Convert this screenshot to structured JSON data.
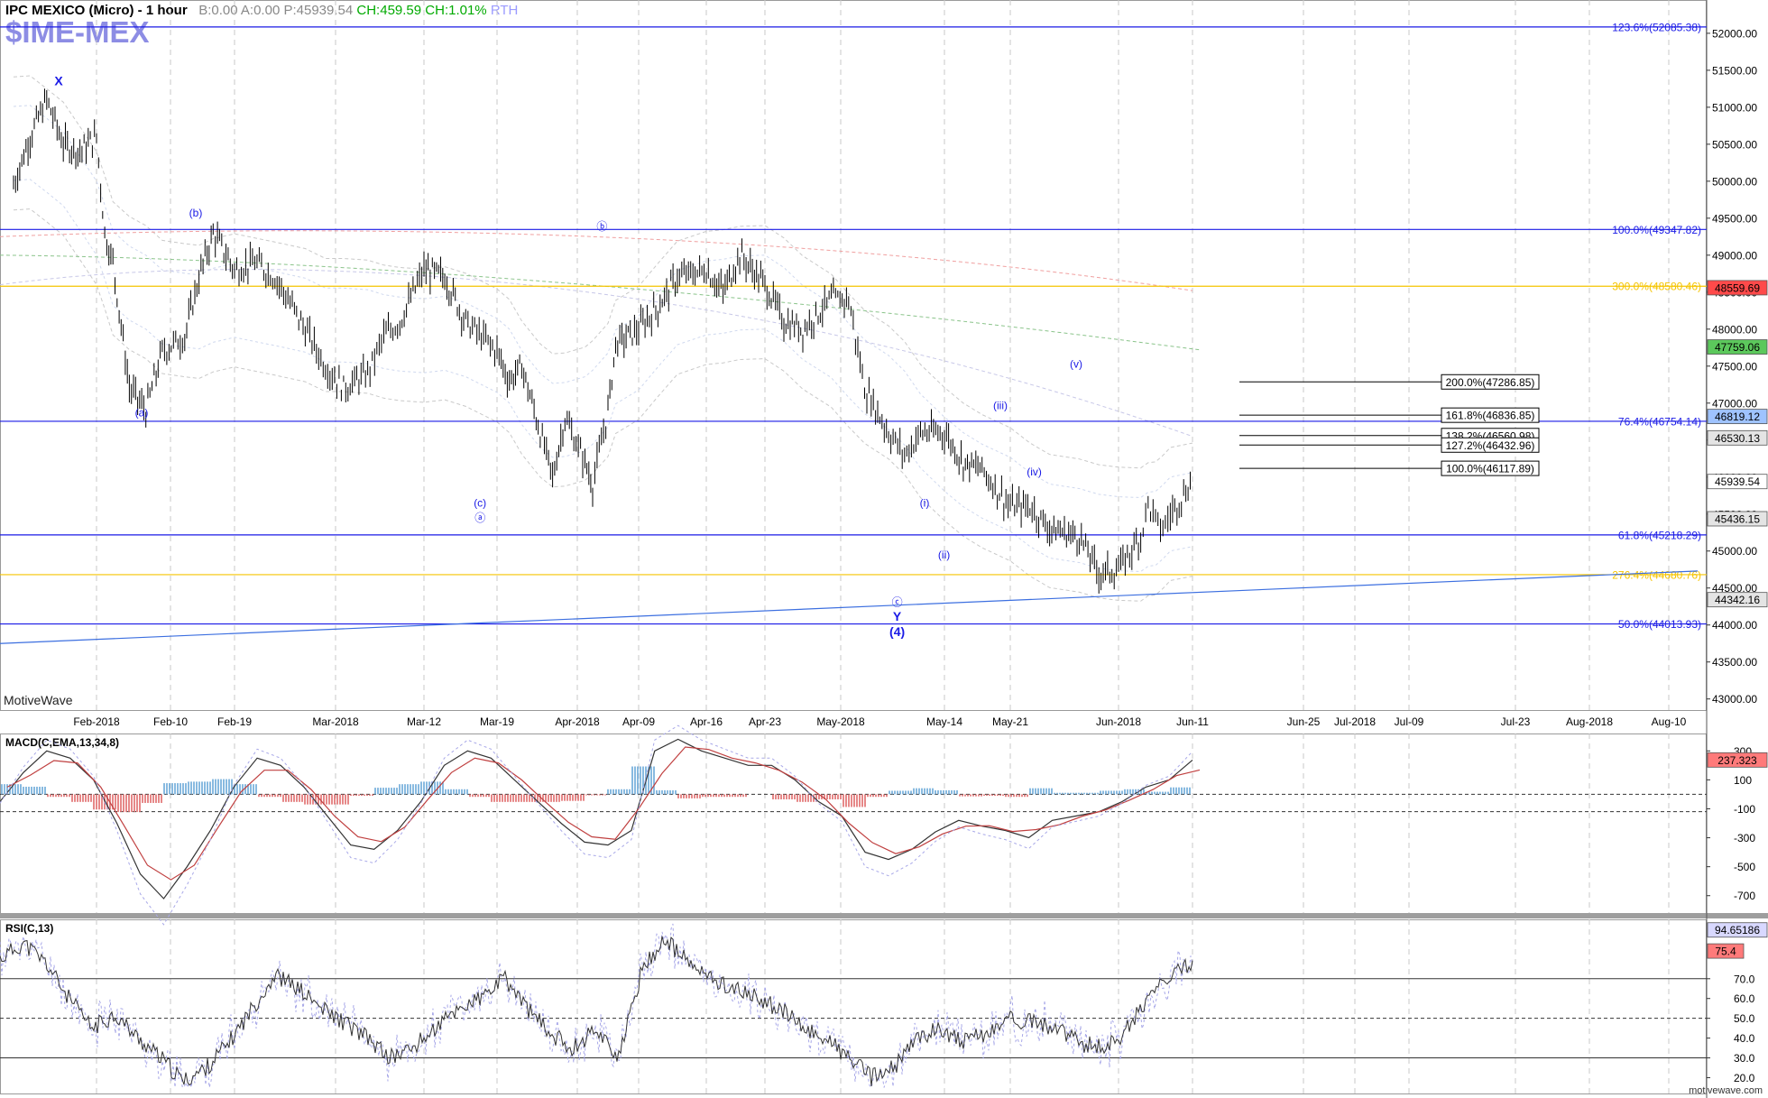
{
  "header": {
    "instrument": "IPC MEXICO (Micro) - 1 hour",
    "b": "B:0.00",
    "a": "A:0.00",
    "p": "P:45939.54",
    "ch": "CH:459.59",
    "chp": "CH:1.01%",
    "rth": "RTH",
    "symbol": "$IME-MEX"
  },
  "watermark": "MotiveWave",
  "footer": "motivewave.com",
  "colors": {
    "price_bar": "#000000",
    "fib_blue": "#1a1ae6",
    "fib_yellow": "#f5c400",
    "trendline": "#3c6fe0",
    "wave_label": "#1a1ae6",
    "macd_pos": "#6aa8d8",
    "macd_neg": "#e06a6a",
    "rsi_fill": "#c8a0a0",
    "rsi_fill_top": "#a8a8d0",
    "price_badge": "#ff3b3b",
    "green_badge": "#4caf50"
  },
  "price_axis": {
    "ticks": [
      "52000.00",
      "51500.00",
      "51000.00",
      "50500.00",
      "50000.00",
      "49500.00",
      "49000.00",
      "48500.00",
      "48000.00",
      "47500.00",
      "47000.00",
      "46500.00",
      "46000.00",
      "45500.00",
      "45000.00",
      "44500.00",
      "44000.00",
      "43500.00",
      "43000.00"
    ],
    "badges": [
      {
        "label": "48559.69",
        "value": 48559.69,
        "style": "red"
      },
      {
        "label": "47759.06",
        "value": 47759.06,
        "style": "green"
      },
      {
        "label": "46819.12",
        "value": 46819.12,
        "style": "blue"
      },
      {
        "label": "46530.13",
        "value": 46530.13,
        "style": "grey"
      },
      {
        "label": "45939.54",
        "value": 45939.54,
        "style": "white"
      },
      {
        "label": "45436.15",
        "value": 45436.15,
        "style": "grey"
      },
      {
        "label": "44342.16",
        "value": 44342.16,
        "style": "grey"
      }
    ]
  },
  "time_axis": {
    "labels": [
      "Feb-2018",
      "Feb-10",
      "Feb-19",
      "Mar-2018",
      "Mar-12",
      "Mar-19",
      "Apr-2018",
      "Apr-09",
      "Apr-16",
      "Apr-23",
      "May-2018",
      "May-14",
      "May-21",
      "Jun-2018",
      "Jun-11",
      "Jun-25",
      "Jul-2018",
      "Jul-09",
      "Jul-23",
      "Aug-2018",
      "Aug-10"
    ]
  },
  "fib_levels": [
    {
      "label": "123.6%(52085.38)",
      "value": 52085.38,
      "color": "blue"
    },
    {
      "label": "100.0%(49347.82)",
      "value": 49347.82,
      "color": "blue"
    },
    {
      "label": "300.0%(48580.46)",
      "value": 48580.46,
      "color": "yellow"
    },
    {
      "label": "76.4%(46754.14)",
      "value": 46754.14,
      "color": "blue"
    },
    {
      "label": "61.8%(45218.29)",
      "value": 45218.29,
      "color": "blue"
    },
    {
      "label": "276.4%(44680.76)",
      "value": 44680.76,
      "color": "yellow"
    },
    {
      "label": "50.0%(44013.93)",
      "value": 44013.93,
      "color": "blue"
    }
  ],
  "projections": [
    {
      "label": "200.0%(47286.85)",
      "value": 47286.85
    },
    {
      "label": "161.8%(46836.85)",
      "value": 46836.85
    },
    {
      "label": "138.2%(46560.98)",
      "value": 46560.98
    },
    {
      "label": "127.2%(46432.96)",
      "value": 46432.96
    },
    {
      "label": "100.0%(46117.89)",
      "value": 46117.89
    }
  ],
  "wave_labels": [
    {
      "text": "X",
      "t": 0.07,
      "price": 51300,
      "bold": true
    },
    {
      "text": "(b)",
      "t": 0.26,
      "price": 49520
    },
    {
      "text": "(a)",
      "t": 0.185,
      "price": 46820
    },
    {
      "text": "(c)",
      "t": 0.654,
      "price": 45600
    },
    {
      "text": "ⓐ",
      "t": 0.654,
      "price": 45400
    },
    {
      "text": "ⓑ",
      "t": 0.823,
      "price": 49340
    },
    {
      "text": "(i)",
      "t": 1.27,
      "price": 45600
    },
    {
      "text": "(ii)",
      "t": 1.297,
      "price": 44900
    },
    {
      "text": "ⓒ",
      "t": 1.232,
      "price": 44260
    },
    {
      "text": "Y",
      "t": 1.232,
      "price": 44060,
      "bold": true
    },
    {
      "text": "(4)",
      "t": 1.232,
      "price": 43850,
      "bold": true
    },
    {
      "text": "(v)",
      "t": 1.48,
      "price": 47480
    },
    {
      "text": "(iii)",
      "t": 1.375,
      "price": 46920
    },
    {
      "text": "(iv)",
      "t": 1.422,
      "price": 46020
    }
  ],
  "chart_data": {
    "type": "line",
    "title": "IPC MEXICO (Micro) - 1 hour",
    "xlabel": "",
    "ylabel": "",
    "ylim": [
      42850,
      52450
    ],
    "series": [
      {
        "name": "",
        "points": [
          [
            "Jan-22",
            49950
          ],
          [
            "Jan-24",
            50600
          ],
          [
            "Jan-26",
            51100
          ],
          [
            "Jan-28",
            50500
          ],
          [
            "Jan-30",
            50400
          ],
          [
            "Feb-01",
            50600
          ],
          [
            "Feb-02",
            49300
          ],
          [
            "Feb-03",
            48900
          ],
          [
            "Feb-05",
            47200
          ],
          [
            "Feb-07",
            46900
          ],
          [
            "Feb-09",
            47700
          ],
          [
            "Feb-12",
            47900
          ],
          [
            "Feb-14",
            48700
          ],
          [
            "Feb-16",
            49300
          ],
          [
            "Feb-19",
            48800
          ],
          [
            "Feb-21",
            48900
          ],
          [
            "Feb-23",
            48700
          ],
          [
            "Feb-26",
            48000
          ],
          [
            "Feb-28",
            47500
          ],
          [
            "Mar-02",
            47200
          ],
          [
            "Mar-05",
            47400
          ],
          [
            "Mar-07",
            47900
          ],
          [
            "Mar-09",
            48100
          ],
          [
            "Mar-12",
            48800
          ],
          [
            "Mar-14",
            48700
          ],
          [
            "Mar-16",
            48100
          ],
          [
            "Mar-19",
            47700
          ],
          [
            "Mar-21",
            47300
          ],
          [
            "Mar-23",
            47500
          ],
          [
            "Mar-26",
            46600
          ],
          [
            "Mar-28",
            46000
          ],
          [
            "Mar-30",
            46800
          ],
          [
            "Apr-02",
            46200
          ],
          [
            "Apr-03",
            45900
          ],
          [
            "Apr-05",
            46900
          ],
          [
            "Apr-06",
            47800
          ],
          [
            "Apr-09",
            48000
          ],
          [
            "Apr-11",
            48300
          ],
          [
            "Apr-13",
            48700
          ],
          [
            "Apr-16",
            48800
          ],
          [
            "Apr-18",
            48500
          ],
          [
            "Apr-20",
            49000
          ],
          [
            "Apr-23",
            48600
          ],
          [
            "Apr-25",
            48100
          ],
          [
            "Apr-27",
            48000
          ],
          [
            "Apr-30",
            48400
          ],
          [
            "May-02",
            48400
          ],
          [
            "May-04",
            47200
          ],
          [
            "May-07",
            46600
          ],
          [
            "May-09",
            46300
          ],
          [
            "May-11",
            46600
          ],
          [
            "May-14",
            46600
          ],
          [
            "May-16",
            46200
          ],
          [
            "May-18",
            46100
          ],
          [
            "May-21",
            45600
          ],
          [
            "May-23",
            45600
          ],
          [
            "May-25",
            45300
          ],
          [
            "May-28",
            45200
          ],
          [
            "May-30",
            44700
          ],
          [
            "Jun-01",
            44750
          ],
          [
            "Jun-04",
            45200
          ],
          [
            "Jun-05",
            45650
          ],
          [
            "Jun-06",
            45400
          ],
          [
            "Jun-07",
            45300
          ],
          [
            "Jun-08",
            45500
          ],
          [
            "Jun-11",
            45950
          ]
        ]
      }
    ],
    "macd": {
      "label": "MACD(C,EMA,13,34,8)",
      "ticks": [
        "300",
        "100",
        "-100",
        "-300",
        "-500",
        "-700"
      ],
      "badge": "237.323",
      "ylim": [
        -820,
        420
      ],
      "series": [
        -50,
        150,
        300,
        250,
        100,
        -200,
        -550,
        -720,
        -500,
        -250,
        50,
        250,
        200,
        50,
        -150,
        -350,
        -380,
        -250,
        -50,
        200,
        300,
        250,
        100,
        -50,
        -200,
        -330,
        -350,
        -250,
        300,
        380,
        300,
        250,
        200,
        200,
        100,
        -50,
        -150,
        -400,
        -450,
        -380,
        -260,
        -180,
        -220,
        -250,
        -300,
        -180,
        -150,
        -120,
        -50,
        50,
        100,
        237
      ]
    },
    "rsi": {
      "label": "RSI(C,13)",
      "ticks": [
        "70.0",
        "60.0",
        "50.0",
        "40.0",
        "30.0",
        "20.0"
      ],
      "levels": [
        70,
        50,
        30
      ],
      "badge_top": "94.65186",
      "badge_value": "75.4",
      "ylim": [
        12,
        100
      ],
      "series": [
        80,
        88,
        78,
        60,
        45,
        52,
        40,
        30,
        18,
        25,
        38,
        55,
        72,
        65,
        55,
        48,
        40,
        30,
        35,
        45,
        55,
        60,
        70,
        55,
        42,
        35,
        45,
        30,
        75,
        90,
        78,
        70,
        65,
        60,
        55,
        45,
        40,
        30,
        20,
        25,
        40,
        45,
        38,
        42,
        50,
        48,
        45,
        38,
        35,
        42,
        60,
        70,
        78
      ]
    }
  }
}
